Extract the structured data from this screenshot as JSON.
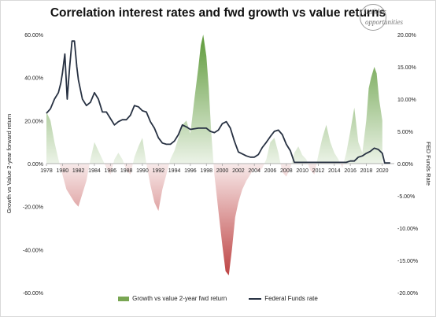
{
  "chart_data": {
    "type": "area",
    "title": "Correlation interest rates and fwd growth vs value returns",
    "logo_text": [
      "Insider",
      "opportunities"
    ],
    "ylabel_left": "Growth vs Value 2-year forward return",
    "ylabel_right": "FED Funds Rate",
    "ylim_left": [
      -0.6,
      0.6
    ],
    "ylim_right": [
      -0.2,
      0.2
    ],
    "xlim": [
      1978,
      2021.5
    ],
    "left_ticks": [
      "60.00%",
      "40.00%",
      "20.00%",
      "0.00%",
      "-20.00%",
      "-40.00%",
      "-60.00%"
    ],
    "right_ticks": [
      "20.00%",
      "15.00%",
      "10.00%",
      "5.00%",
      "0.00%",
      "-5.00%",
      "-10.00%",
      "-15.00%",
      "-20.00%"
    ],
    "x_ticks": [
      "1978",
      "1980",
      "1982",
      "1984",
      "1986",
      "1988",
      "1990",
      "1992",
      "1994",
      "1996",
      "1998",
      "2000",
      "2002",
      "2004",
      "2006",
      "2008",
      "2010",
      "2012",
      "2014",
      "2016",
      "2018",
      "2020"
    ],
    "legend": {
      "position": "bottom"
    },
    "colors": {
      "area_positive": "#5e9a3a",
      "area_negative": "#b52a2a",
      "line": "#273142"
    },
    "series": [
      {
        "name": "Growth vs value 2-year fwd return",
        "axis": "left",
        "x": [
          1978.0,
          1978.5,
          1979.0,
          1979.5,
          1980.0,
          1980.5,
          1981.0,
          1981.5,
          1982.0,
          1982.5,
          1983.0,
          1983.5,
          1984.0,
          1984.5,
          1985.0,
          1985.5,
          1986.0,
          1986.5,
          1987.0,
          1987.5,
          1988.0,
          1988.5,
          1989.0,
          1989.5,
          1990.0,
          1990.5,
          1991.0,
          1991.5,
          1992.0,
          1992.5,
          1993.0,
          1993.5,
          1994.0,
          1994.5,
          1995.0,
          1995.5,
          1996.0,
          1996.5,
          1997.0,
          1997.3,
          1997.6,
          1998.0,
          1998.3,
          1998.6,
          1999.0,
          1999.5,
          2000.0,
          2000.4,
          2000.8,
          2001.2,
          2001.6,
          2002.0,
          2002.5,
          2003.0,
          2003.5,
          2004.0,
          2004.5,
          2005.0,
          2005.5,
          2006.0,
          2006.5,
          2007.0,
          2007.5,
          2008.0,
          2008.5,
          2009.0,
          2009.5,
          2010.0,
          2010.5,
          2011.0,
          2011.5,
          2012.0,
          2012.5,
          2013.0,
          2013.5,
          2014.0,
          2014.5,
          2015.0,
          2015.5,
          2016.0,
          2016.5,
          2017.0,
          2017.5,
          2018.0,
          2018.3,
          2018.6,
          2019.0,
          2019.3,
          2019.6,
          2020.0
        ],
        "values": [
          0.24,
          0.2,
          0.1,
          0.02,
          -0.05,
          -0.12,
          -0.15,
          -0.18,
          -0.2,
          -0.14,
          -0.08,
          0.02,
          0.1,
          0.06,
          0.02,
          -0.02,
          -0.05,
          0.02,
          0.05,
          0.02,
          -0.03,
          -0.05,
          0.03,
          0.08,
          0.12,
          0.0,
          -0.1,
          -0.18,
          -0.22,
          -0.12,
          -0.05,
          0.02,
          0.06,
          0.12,
          0.18,
          0.2,
          0.14,
          0.3,
          0.45,
          0.55,
          0.6,
          0.5,
          0.35,
          0.15,
          -0.05,
          -0.22,
          -0.38,
          -0.5,
          -0.52,
          -0.4,
          -0.25,
          -0.18,
          -0.12,
          -0.08,
          -0.05,
          -0.02,
          -0.04,
          -0.02,
          0.02,
          0.1,
          0.12,
          0.05,
          -0.04,
          -0.06,
          -0.02,
          0.05,
          0.08,
          0.04,
          0.02,
          -0.03,
          -0.05,
          0.04,
          0.12,
          0.18,
          0.1,
          0.05,
          0.02,
          -0.02,
          0.05,
          0.15,
          0.26,
          0.1,
          0.05,
          0.2,
          0.35,
          0.4,
          0.45,
          0.42,
          0.3,
          0.2
        ]
      },
      {
        "name": "Federal Funds rate",
        "axis": "right",
        "x": [
          1978.0,
          1978.5,
          1979.0,
          1979.5,
          1979.8,
          1980.0,
          1980.3,
          1980.6,
          1980.9,
          1981.2,
          1981.5,
          1981.8,
          1982.0,
          1982.5,
          1983.0,
          1983.5,
          1984.0,
          1984.5,
          1985.0,
          1985.5,
          1986.0,
          1986.5,
          1987.0,
          1987.5,
          1988.0,
          1988.5,
          1989.0,
          1989.5,
          1990.0,
          1990.5,
          1991.0,
          1991.5,
          1992.0,
          1992.5,
          1993.0,
          1993.5,
          1994.0,
          1994.5,
          1995.0,
          1995.5,
          1996.0,
          1997.0,
          1998.0,
          1998.5,
          1999.0,
          1999.5,
          2000.0,
          2000.5,
          2001.0,
          2001.5,
          2002.0,
          2003.0,
          2003.5,
          2004.0,
          2004.5,
          2005.0,
          2005.5,
          2006.0,
          2006.5,
          2007.0,
          2007.5,
          2008.0,
          2008.5,
          2009.0,
          2015.0,
          2015.5,
          2016.0,
          2016.5,
          2017.0,
          2017.5,
          2018.0,
          2018.5,
          2019.0,
          2019.5,
          2020.0,
          2020.3,
          2021.0
        ],
        "values": [
          0.078,
          0.085,
          0.1,
          0.11,
          0.125,
          0.14,
          0.17,
          0.1,
          0.15,
          0.19,
          0.19,
          0.15,
          0.13,
          0.1,
          0.09,
          0.095,
          0.11,
          0.1,
          0.08,
          0.08,
          0.07,
          0.06,
          0.065,
          0.068,
          0.068,
          0.075,
          0.09,
          0.088,
          0.082,
          0.08,
          0.065,
          0.055,
          0.04,
          0.032,
          0.03,
          0.03,
          0.035,
          0.045,
          0.06,
          0.057,
          0.053,
          0.055,
          0.055,
          0.05,
          0.048,
          0.052,
          0.062,
          0.065,
          0.055,
          0.035,
          0.018,
          0.012,
          0.01,
          0.01,
          0.014,
          0.025,
          0.033,
          0.042,
          0.05,
          0.052,
          0.045,
          0.03,
          0.02,
          0.002,
          0.002,
          0.002,
          0.004,
          0.004,
          0.01,
          0.012,
          0.016,
          0.019,
          0.024,
          0.022,
          0.016,
          0.001,
          0.001
        ]
      }
    ]
  }
}
